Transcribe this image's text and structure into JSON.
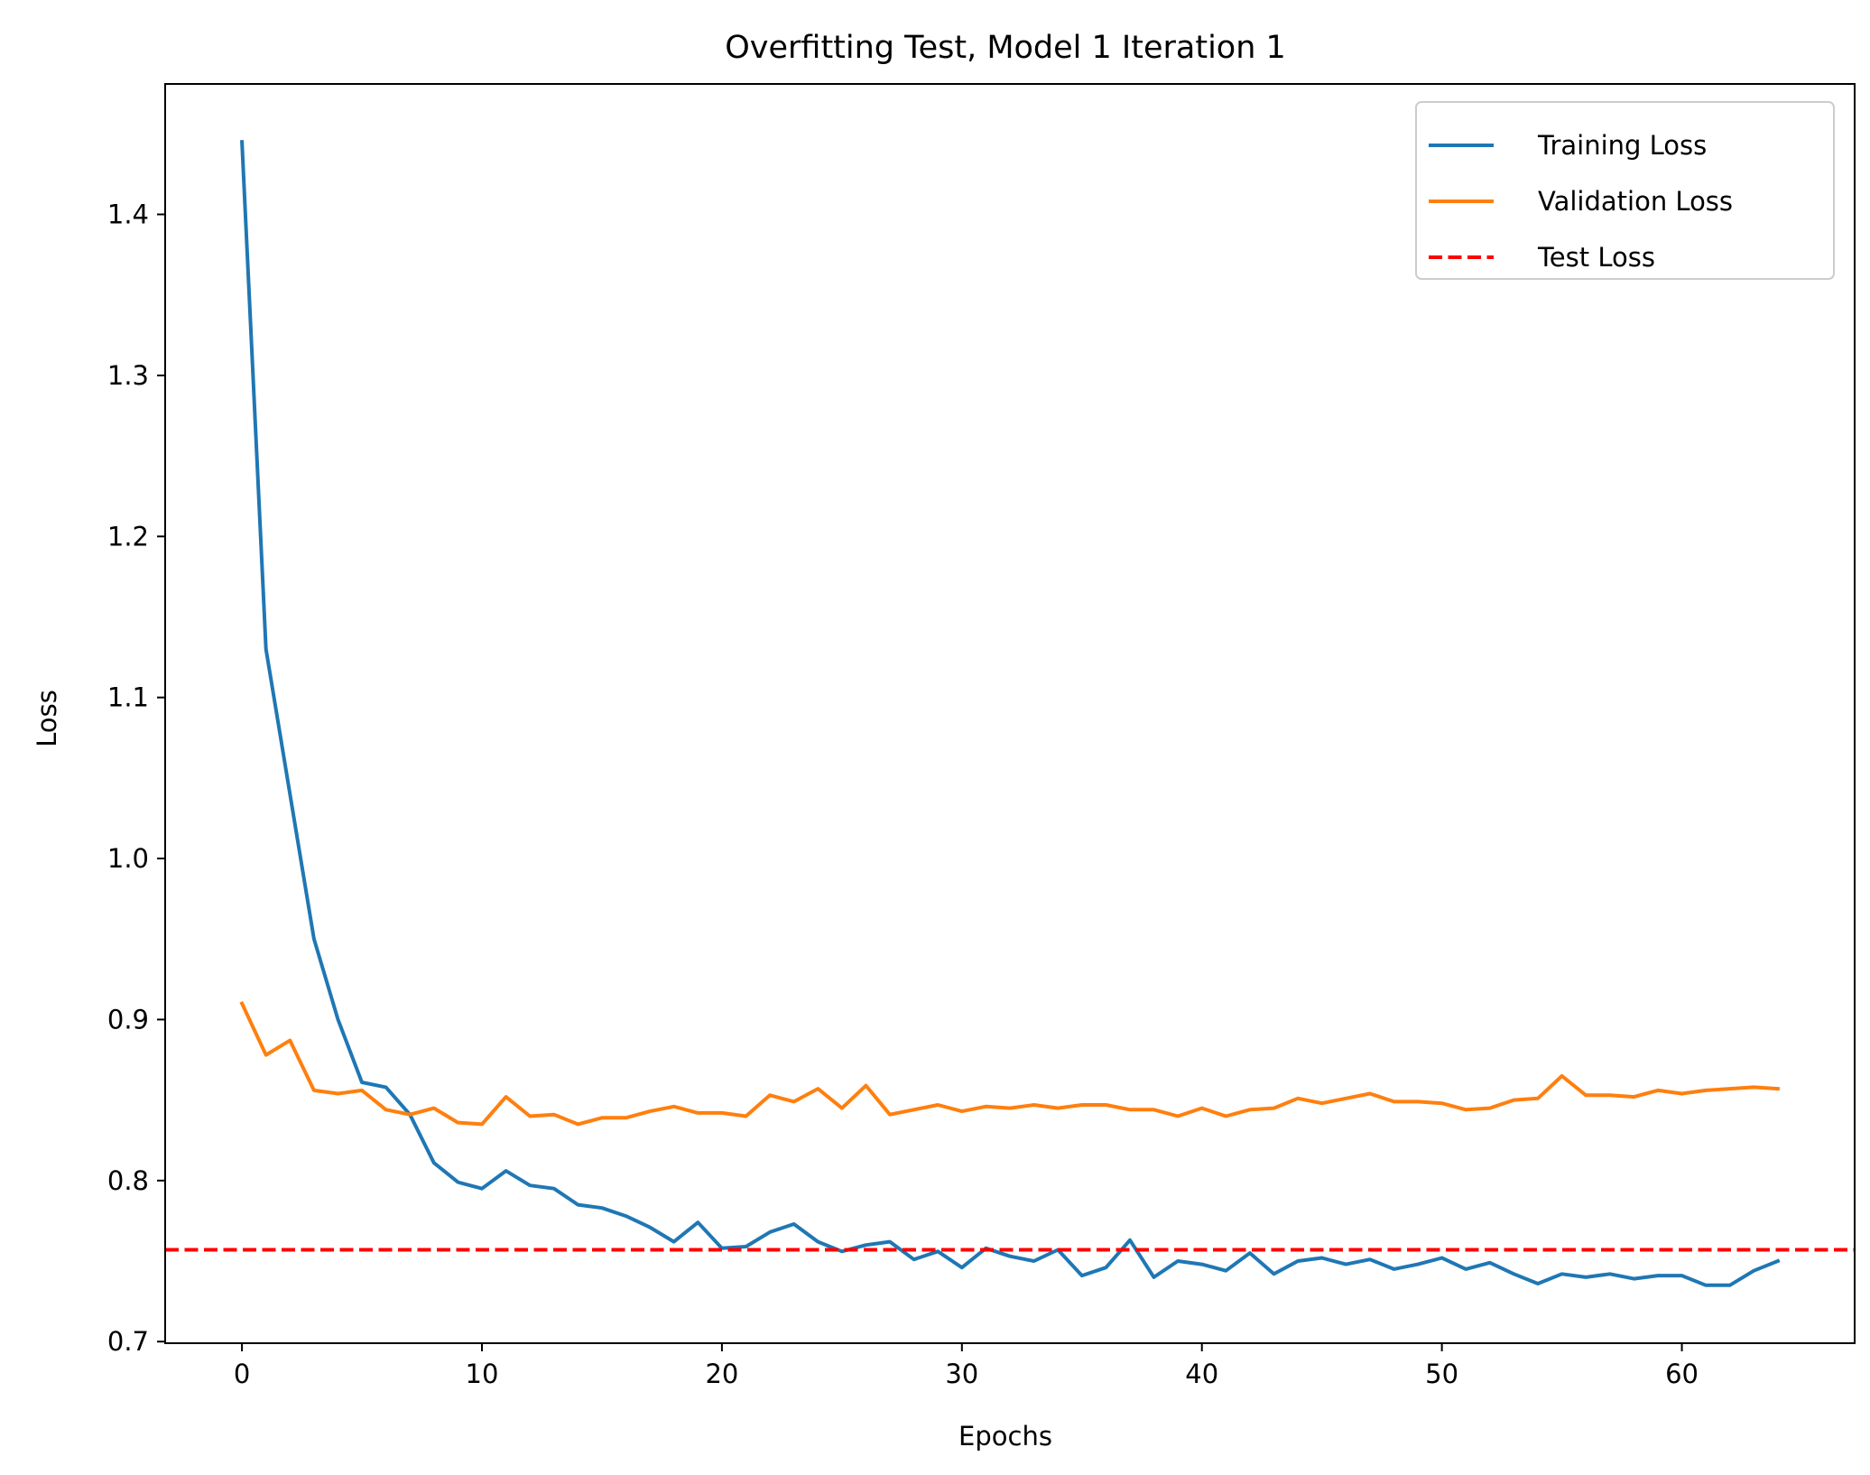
{
  "chart_data": {
    "type": "line",
    "title": "Overfitting Test, Model 1 Iteration 1",
    "xlabel": "Epochs",
    "ylabel": "Loss",
    "xlim": [
      -3.2,
      67.2
    ],
    "ylim": [
      0.699,
      1.481
    ],
    "xticks": [
      0,
      10,
      20,
      30,
      40,
      50,
      60
    ],
    "yticks": [
      0.7,
      0.8,
      0.9,
      1.0,
      1.1,
      1.2,
      1.3,
      1.4
    ],
    "xtick_labels": [
      "0",
      "10",
      "20",
      "30",
      "40",
      "50",
      "60"
    ],
    "ytick_labels": [
      "0.7",
      "0.8",
      "0.9",
      "1.0",
      "1.1",
      "1.2",
      "1.3",
      "1.4"
    ],
    "grid": false,
    "legend_position": "top-right",
    "series": [
      {
        "name": "Training Loss",
        "color": "#1f77b4",
        "style": "solid",
        "x": [
          0,
          1,
          2,
          3,
          4,
          5,
          6,
          7,
          8,
          9,
          10,
          11,
          12,
          13,
          14,
          15,
          16,
          17,
          18,
          19,
          20,
          21,
          22,
          23,
          24,
          25,
          26,
          27,
          28,
          29,
          30,
          31,
          32,
          33,
          34,
          35,
          36,
          37,
          38,
          39,
          40,
          41,
          42,
          43,
          44,
          45,
          46,
          47,
          48,
          49,
          50,
          51,
          52,
          53,
          54,
          55,
          56,
          57,
          58,
          59,
          60,
          61,
          62,
          63,
          64
        ],
        "values": [
          1.445,
          1.13,
          1.04,
          0.95,
          0.9,
          0.861,
          0.858,
          0.841,
          0.811,
          0.799,
          0.795,
          0.806,
          0.797,
          0.795,
          0.785,
          0.783,
          0.778,
          0.771,
          0.762,
          0.774,
          0.758,
          0.759,
          0.768,
          0.773,
          0.762,
          0.756,
          0.76,
          0.762,
          0.751,
          0.756,
          0.746,
          0.758,
          0.753,
          0.75,
          0.757,
          0.741,
          0.746,
          0.763,
          0.74,
          0.75,
          0.748,
          0.744,
          0.755,
          0.742,
          0.75,
          0.752,
          0.748,
          0.751,
          0.745,
          0.748,
          0.752,
          0.745,
          0.749,
          0.742,
          0.736,
          0.742,
          0.74,
          0.742,
          0.739,
          0.741,
          0.741,
          0.735,
          0.735,
          0.744,
          0.75
        ]
      },
      {
        "name": "Validation Loss",
        "color": "#ff7f0e",
        "style": "solid",
        "x": [
          0,
          1,
          2,
          3,
          4,
          5,
          6,
          7,
          8,
          9,
          10,
          11,
          12,
          13,
          14,
          15,
          16,
          17,
          18,
          19,
          20,
          21,
          22,
          23,
          24,
          25,
          26,
          27,
          28,
          29,
          30,
          31,
          32,
          33,
          34,
          35,
          36,
          37,
          38,
          39,
          40,
          41,
          42,
          43,
          44,
          45,
          46,
          47,
          48,
          49,
          50,
          51,
          52,
          53,
          54,
          55,
          56,
          57,
          58,
          59,
          60,
          61,
          62,
          63,
          64
        ],
        "values": [
          0.91,
          0.878,
          0.887,
          0.856,
          0.854,
          0.856,
          0.844,
          0.841,
          0.845,
          0.836,
          0.835,
          0.852,
          0.84,
          0.841,
          0.835,
          0.839,
          0.839,
          0.843,
          0.846,
          0.842,
          0.842,
          0.84,
          0.853,
          0.849,
          0.857,
          0.845,
          0.859,
          0.841,
          0.844,
          0.847,
          0.843,
          0.846,
          0.845,
          0.847,
          0.845,
          0.847,
          0.847,
          0.844,
          0.844,
          0.84,
          0.845,
          0.84,
          0.844,
          0.845,
          0.851,
          0.848,
          0.851,
          0.854,
          0.849,
          0.849,
          0.848,
          0.844,
          0.845,
          0.85,
          0.851,
          0.865,
          0.853,
          0.853,
          0.852,
          0.856,
          0.854,
          0.856,
          0.857,
          0.858,
          0.857
        ]
      },
      {
        "name": "Test Loss",
        "color": "#ff0000",
        "style": "dashed",
        "constant": 0.757
      }
    ]
  }
}
